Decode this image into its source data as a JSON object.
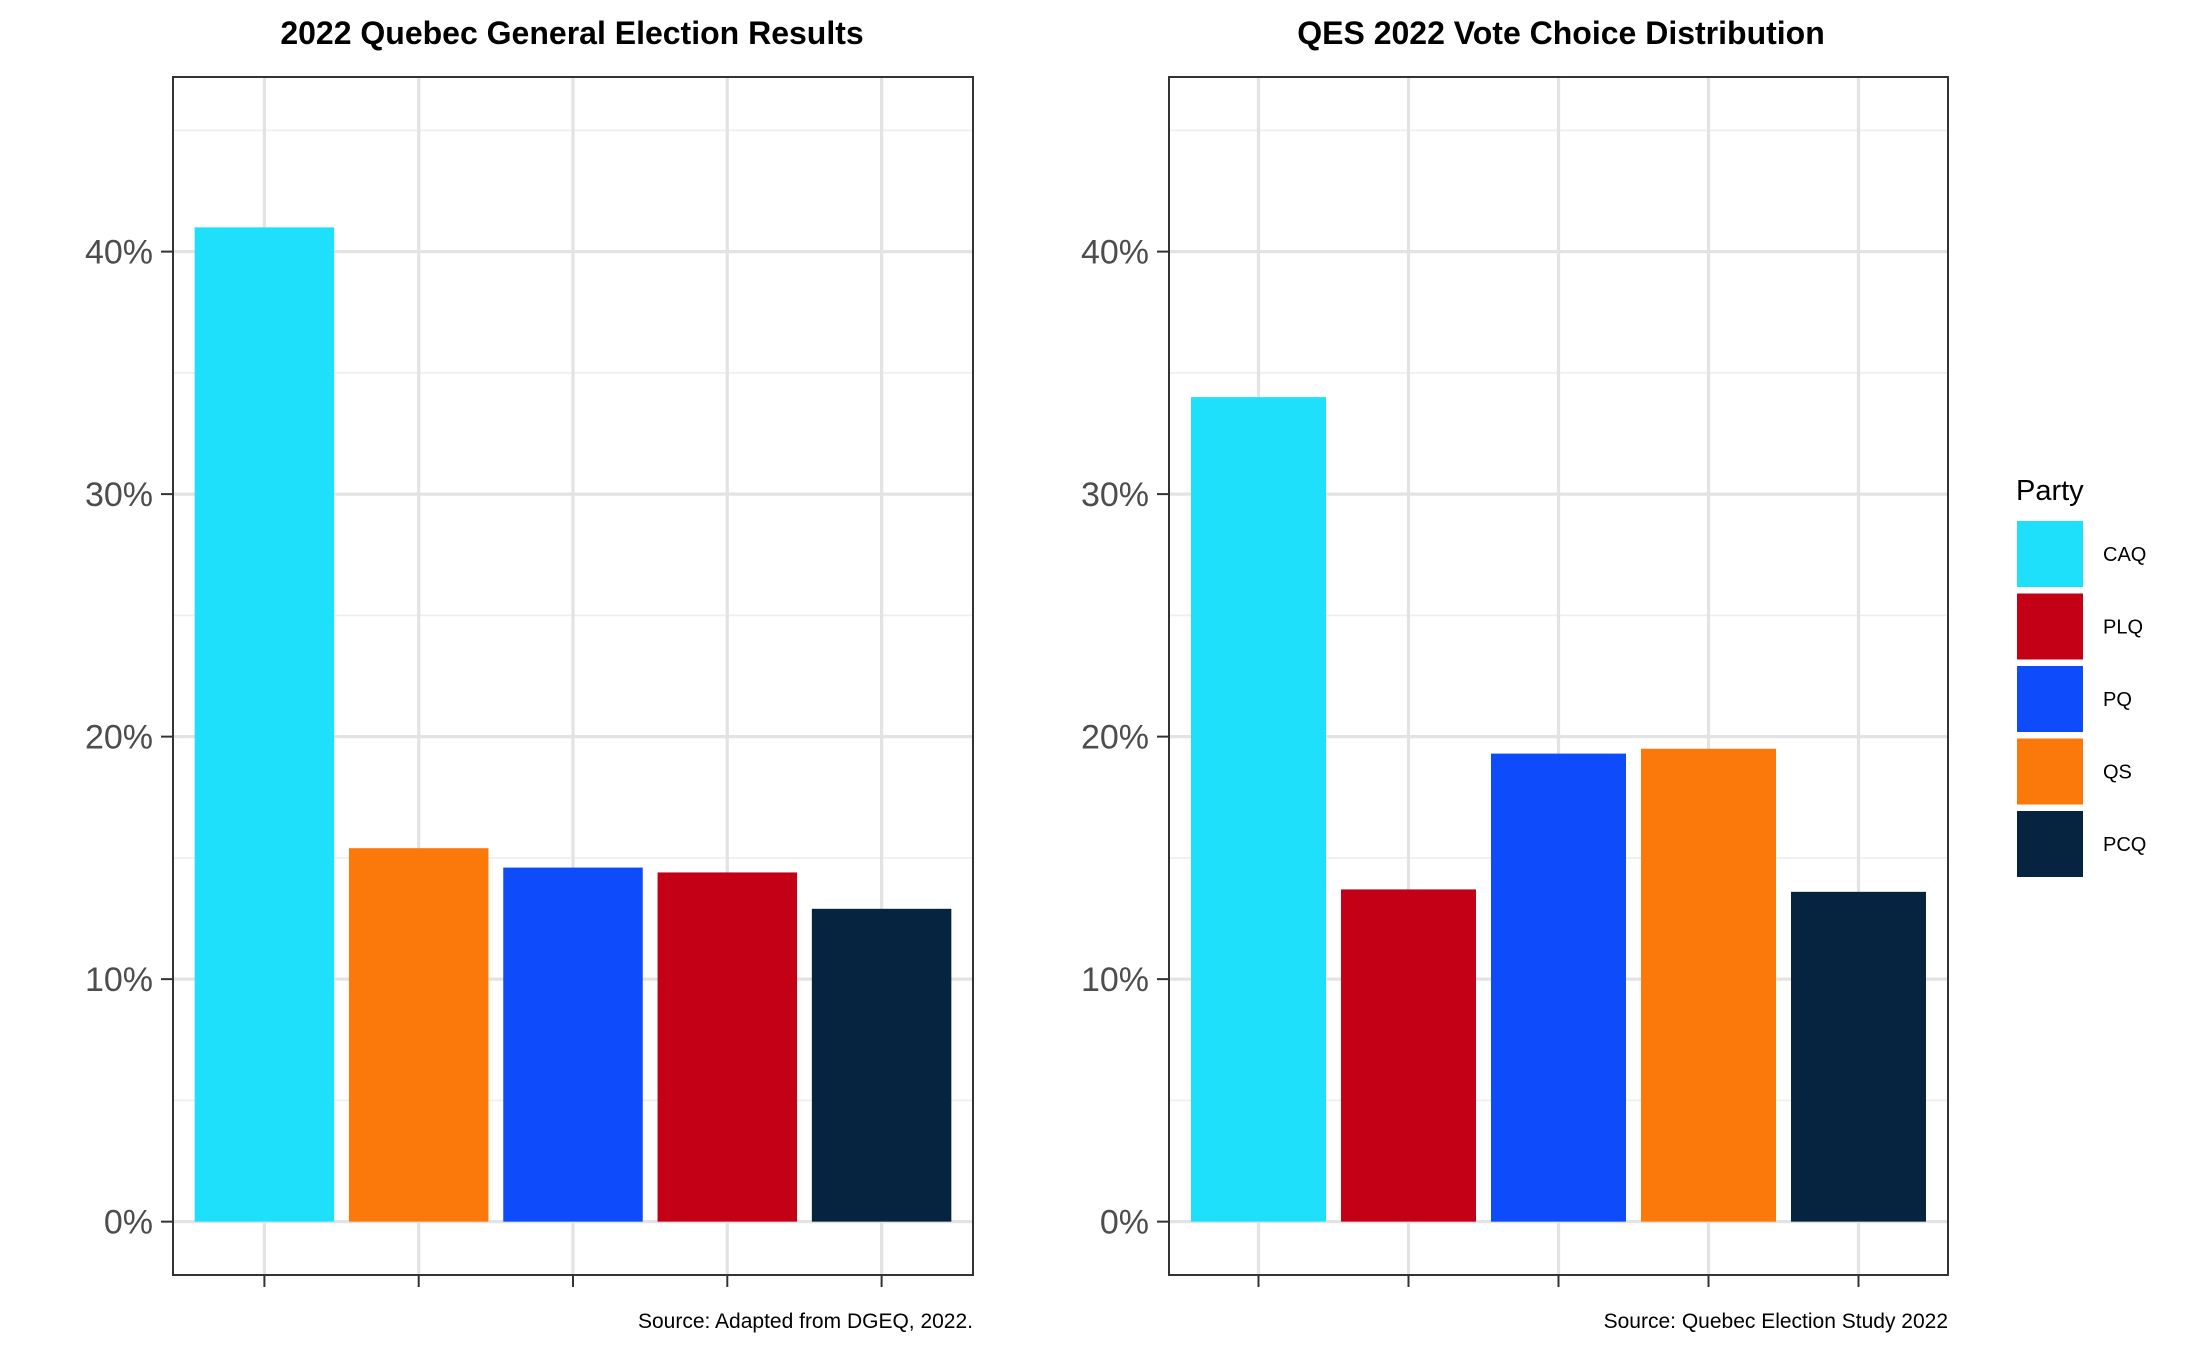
{
  "legend": {
    "title": "Party",
    "items": [
      {
        "label": "CAQ",
        "color": "#1FE0FB"
      },
      {
        "label": "PLQ",
        "color": "#C30016"
      },
      {
        "label": "PQ",
        "color": "#0E4BFB"
      },
      {
        "label": "QS",
        "color": "#FB790A"
      },
      {
        "label": "PCQ",
        "color": "#06243F"
      }
    ]
  },
  "chart_data": [
    {
      "type": "bar",
      "title": "2022 Quebec General Election Results",
      "caption": "Source: Adapted from DGEQ, 2022.",
      "xlabel": "",
      "ylabel": "",
      "x_tick_labels_shown": false,
      "categories": [
        "CAQ",
        "QS",
        "PQ",
        "PLQ",
        "PCQ"
      ],
      "values": [
        41.0,
        15.4,
        14.6,
        14.4,
        12.9
      ],
      "value_unit": "%",
      "ylim": [
        -2.2,
        47.2
      ],
      "yticks": [
        0,
        10,
        20,
        30,
        40
      ],
      "ytick_labels": [
        "0%",
        "10%",
        "20%",
        "30%",
        "40%"
      ],
      "grid": true
    },
    {
      "type": "bar",
      "title": "QES 2022 Vote Choice Distribution",
      "caption": "Source: Quebec Election Study 2022",
      "xlabel": "",
      "ylabel": "",
      "x_tick_labels_shown": false,
      "categories": [
        "CAQ",
        "PLQ",
        "PQ",
        "QS",
        "PCQ"
      ],
      "values": [
        34.0,
        13.7,
        19.3,
        19.5,
        13.6
      ],
      "value_unit": "%",
      "ylim": [
        -2.2,
        47.2
      ],
      "yticks": [
        0,
        10,
        20,
        30,
        40
      ],
      "ytick_labels": [
        "0%",
        "10%",
        "20%",
        "30%",
        "40%"
      ],
      "grid": true
    }
  ]
}
